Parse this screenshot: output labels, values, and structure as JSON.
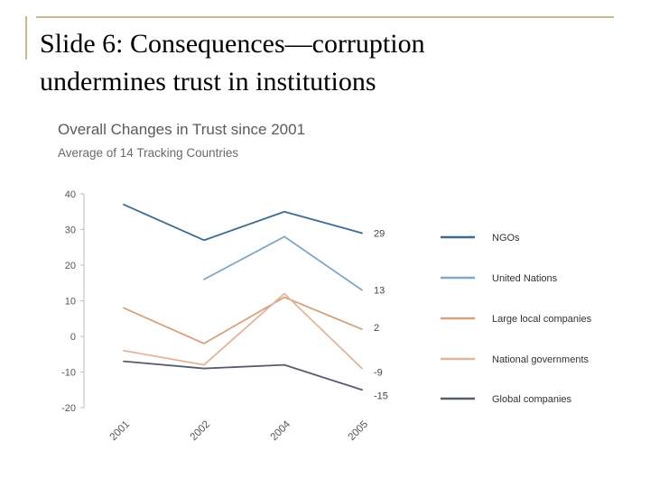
{
  "slide": {
    "title_line1": "Slide 6: Consequences—corruption",
    "title_line2": "undermines trust in institutions"
  },
  "chart_data": {
    "type": "line",
    "title": "Overall Changes in Trust since 2001",
    "subtitle": "Average of 14 Tracking Countries",
    "xlabel": "",
    "ylabel": "",
    "categories": [
      "2001",
      "2002",
      "2004",
      "2005"
    ],
    "ylim": [
      -20,
      40
    ],
    "yticks": [
      40,
      30,
      20,
      10,
      0,
      -10,
      -20
    ],
    "ytick_labels": [
      "40",
      "30",
      "20",
      "10",
      "0",
      "-10",
      "-20"
    ],
    "legend_position": "right",
    "series": [
      {
        "name": "NGOs",
        "color": "#3d6b8f",
        "values": [
          37,
          27,
          35,
          29
        ],
        "end_label": "29"
      },
      {
        "name": "United Nations",
        "color": "#7fa8c4",
        "values": [
          null,
          16,
          28,
          13
        ],
        "end_label": "13"
      },
      {
        "name": "Large local companies",
        "color": "#d9a07e",
        "values": [
          8,
          -2,
          11,
          2
        ],
        "end_label": "2"
      },
      {
        "name": "National governments",
        "color": "#e2b59a",
        "values": [
          -4,
          -8,
          12,
          -9
        ],
        "end_label": "-9"
      },
      {
        "name": "Global companies",
        "color": "#545d6b",
        "values": [
          -7,
          -9,
          -8,
          -15
        ],
        "end_label": "-15"
      }
    ]
  }
}
